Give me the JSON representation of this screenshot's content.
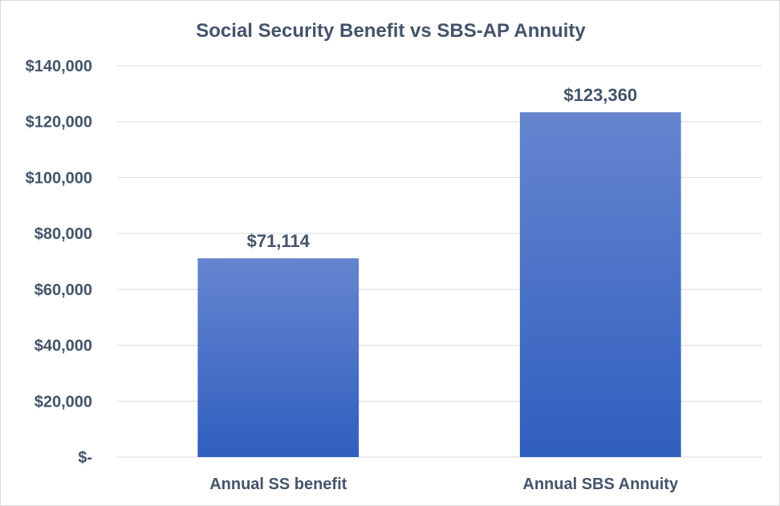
{
  "chart_data": {
    "type": "bar",
    "title": "Social Security Benefit vs SBS-AP Annuity",
    "categories": [
      "Annual SS benefit",
      "Annual SBS Annuity"
    ],
    "values": [
      71114,
      123360
    ],
    "data_labels": [
      "$71,114",
      "$123,360"
    ],
    "ylim": [
      0,
      140000
    ],
    "yticks": [
      0,
      20000,
      40000,
      60000,
      80000,
      100000,
      120000,
      140000
    ],
    "ytick_labels": [
      "$-",
      "$20,000",
      "$40,000",
      "$60,000",
      "$80,000",
      "$100,000",
      "$120,000",
      "$140,000"
    ],
    "xlabel": "",
    "ylabel": "",
    "grid": true,
    "legend": "none",
    "colors": {
      "bar_top": "#6685cf",
      "bar_bottom": "#2f5fbf",
      "text": "#44546a",
      "grid": "#d9d9d9"
    }
  }
}
